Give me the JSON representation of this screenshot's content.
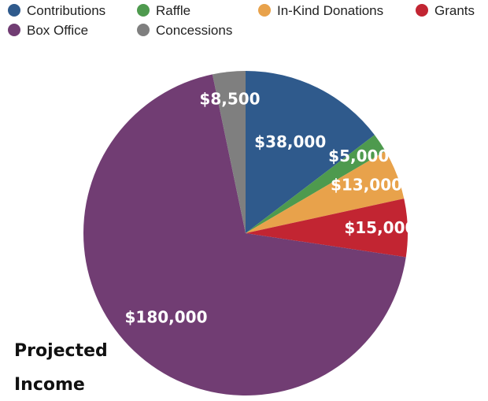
{
  "chart_data": {
    "type": "pie",
    "title_lines": [
      "Projected",
      "Income"
    ],
    "legend_position": "top",
    "slices": [
      {
        "name": "Contributions",
        "value": 38000,
        "label": "$38,000",
        "color": "#2f5a8c"
      },
      {
        "name": "Raffle",
        "value": 5000,
        "label": "$5,000",
        "color": "#4e9a4e"
      },
      {
        "name": "In-Kind Donations",
        "value": 13000,
        "label": "$13,000",
        "color": "#e8a24b"
      },
      {
        "name": "Grants",
        "value": 15000,
        "label": "$15,000",
        "color": "#c22532"
      },
      {
        "name": "Box Office",
        "value": 180000,
        "label": "$180,000",
        "color": "#713d73"
      },
      {
        "name": "Concessions",
        "value": 8500,
        "label": "$8,500",
        "color": "#7f7f7f"
      }
    ]
  }
}
